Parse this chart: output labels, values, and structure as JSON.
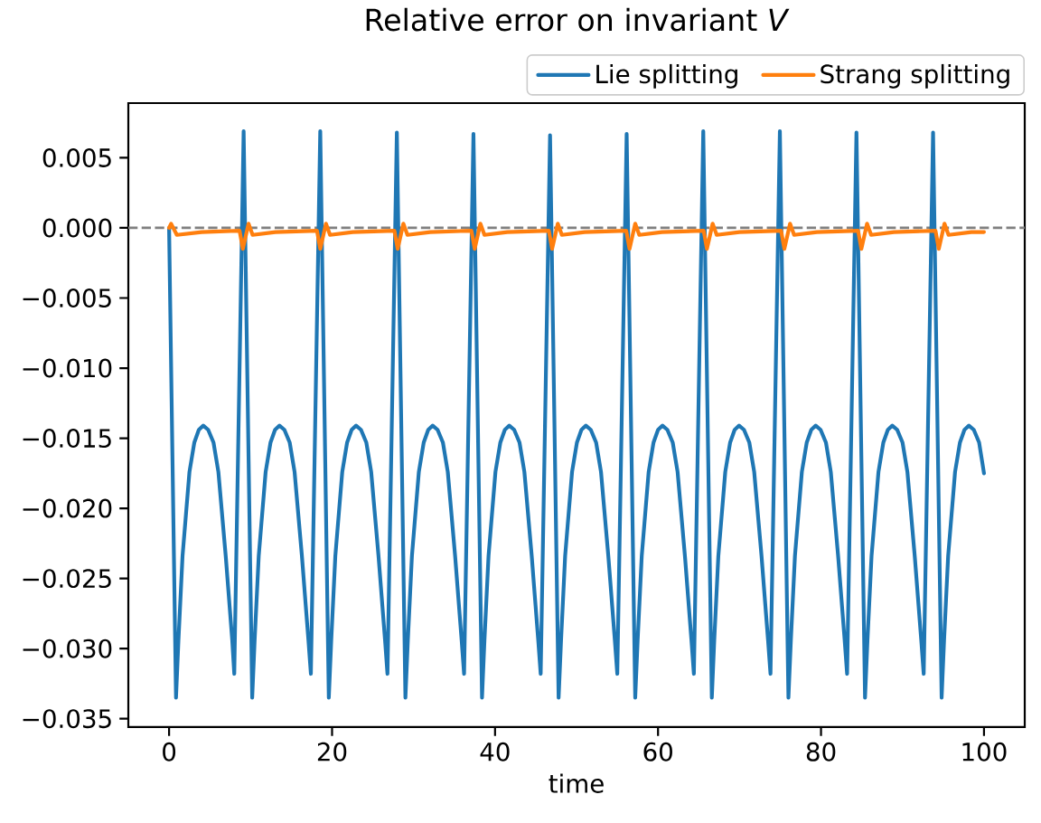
{
  "chart_data": {
    "type": "line",
    "title": "Relative error on invariant *V*",
    "xlabel": "time",
    "xlim": [
      -5,
      105
    ],
    "xticks": [
      0,
      20,
      40,
      60,
      80,
      100
    ],
    "ylim": [
      -0.0356,
      0.0089
    ],
    "yticks": [
      {
        "value": -0.035,
        "label": "−0.035"
      },
      {
        "value": -0.03,
        "label": "−0.030"
      },
      {
        "value": -0.025,
        "label": "−0.025"
      },
      {
        "value": -0.02,
        "label": "−0.020"
      },
      {
        "value": -0.015,
        "label": "−0.015"
      },
      {
        "value": -0.01,
        "label": "−0.010"
      },
      {
        "value": -0.005,
        "label": "−0.005"
      },
      {
        "value": 0,
        "label": "0.000"
      },
      {
        "value": 0.005,
        "label": "0.005"
      }
    ],
    "series": [
      {
        "name": "Lie splitting",
        "color": "#1f77b4",
        "x": [
          0,
          0.85,
          1.15,
          1.65,
          2.5,
          3.1,
          3.65,
          4.2,
          4.8,
          5.45,
          6.05,
          6.95,
          7.75,
          8.0,
          9.15,
          10.2,
          10.5,
          11.0,
          11.85,
          12.45,
          13.0,
          13.55,
          14.15,
          14.8,
          15.4,
          16.3,
          17.1,
          17.4,
          18.55,
          19.6,
          19.9,
          20.4,
          21.25,
          21.85,
          22.4,
          22.95,
          23.55,
          24.2,
          24.8,
          25.7,
          26.5,
          26.8,
          27.95,
          29.0,
          29.3,
          29.8,
          30.65,
          31.25,
          31.8,
          32.35,
          32.95,
          33.6,
          34.2,
          35.1,
          35.9,
          36.2,
          37.35,
          38.4,
          38.7,
          39.2,
          40.05,
          40.65,
          41.2,
          41.75,
          42.35,
          43.0,
          43.6,
          44.5,
          45.3,
          45.6,
          46.75,
          47.8,
          48.1,
          48.6,
          49.45,
          50.05,
          50.6,
          51.15,
          51.75,
          52.4,
          53.0,
          53.9,
          54.7,
          55.0,
          56.15,
          57.2,
          57.5,
          58.0,
          58.85,
          59.45,
          60.0,
          60.55,
          61.15,
          61.8,
          62.4,
          63.3,
          64.1,
          64.4,
          65.55,
          66.6,
          66.9,
          67.4,
          68.25,
          68.85,
          69.4,
          69.95,
          70.55,
          71.2,
          71.8,
          72.7,
          73.5,
          73.8,
          74.95,
          76.0,
          76.3,
          76.8,
          77.65,
          78.25,
          78.8,
          79.35,
          79.95,
          80.6,
          81.2,
          82.1,
          82.9,
          83.2,
          84.35,
          85.4,
          85.7,
          86.2,
          87.05,
          87.65,
          88.2,
          88.75,
          89.35,
          90.0,
          90.6,
          91.5,
          92.3,
          92.6,
          93.75,
          94.8,
          95.1,
          95.6,
          96.45,
          97.05,
          97.6,
          98.15,
          98.75,
          99.4,
          100
        ],
        "values": [
          0.0,
          -0.0335,
          -0.0294,
          -0.0234,
          -0.0174,
          -0.0153,
          -0.0144,
          -0.0141,
          -0.0144,
          -0.0153,
          -0.0174,
          -0.0234,
          -0.0294,
          -0.0318,
          0.0069,
          -0.0335,
          -0.0294,
          -0.0234,
          -0.0174,
          -0.0153,
          -0.0144,
          -0.0141,
          -0.0144,
          -0.0153,
          -0.0174,
          -0.0234,
          -0.0294,
          -0.0318,
          0.0069,
          -0.0335,
          -0.0294,
          -0.0234,
          -0.0174,
          -0.0153,
          -0.0144,
          -0.0141,
          -0.0144,
          -0.0153,
          -0.0174,
          -0.0234,
          -0.0294,
          -0.0318,
          0.0068,
          -0.0335,
          -0.0294,
          -0.0234,
          -0.0174,
          -0.0153,
          -0.0144,
          -0.0141,
          -0.0144,
          -0.0153,
          -0.0174,
          -0.0234,
          -0.0294,
          -0.0318,
          0.0067,
          -0.0335,
          -0.0294,
          -0.0234,
          -0.0174,
          -0.0153,
          -0.0144,
          -0.0141,
          -0.0144,
          -0.0153,
          -0.0174,
          -0.0234,
          -0.0294,
          -0.0318,
          0.0066,
          -0.0335,
          -0.0294,
          -0.0234,
          -0.0174,
          -0.0153,
          -0.0144,
          -0.0141,
          -0.0144,
          -0.0153,
          -0.0174,
          -0.0234,
          -0.0294,
          -0.0318,
          0.0067,
          -0.0335,
          -0.0294,
          -0.0234,
          -0.0174,
          -0.0153,
          -0.0144,
          -0.0141,
          -0.0144,
          -0.0153,
          -0.0174,
          -0.0234,
          -0.0294,
          -0.0318,
          0.0069,
          -0.0335,
          -0.0294,
          -0.0234,
          -0.0174,
          -0.0153,
          -0.0144,
          -0.0141,
          -0.0144,
          -0.0153,
          -0.0174,
          -0.0234,
          -0.0294,
          -0.0318,
          0.0069,
          -0.0335,
          -0.0294,
          -0.0234,
          -0.0174,
          -0.0153,
          -0.0144,
          -0.0141,
          -0.0144,
          -0.0153,
          -0.0174,
          -0.0234,
          -0.0294,
          -0.0318,
          0.0068,
          -0.0335,
          -0.0294,
          -0.0234,
          -0.0174,
          -0.0153,
          -0.0144,
          -0.0141,
          -0.0144,
          -0.0153,
          -0.0174,
          -0.0234,
          -0.0294,
          -0.0318,
          0.0068,
          -0.0335,
          -0.0294,
          -0.0234,
          -0.0174,
          -0.0153,
          -0.0144,
          -0.0141,
          -0.0144,
          -0.0153,
          -0.0175
        ]
      },
      {
        "name": "Strang splitting",
        "color": "#ff7f0e",
        "x": [
          0,
          0.25,
          0.95,
          4.0,
          8.65,
          9.05,
          9.75,
          10.25,
          13.05,
          18.15,
          18.55,
          19.25,
          19.75,
          22.55,
          27.65,
          28.05,
          28.75,
          29.25,
          32.05,
          37.1,
          37.5,
          38.2,
          38.7,
          41.5,
          46.6,
          47.0,
          47.7,
          48.2,
          51.0,
          56.1,
          56.5,
          57.2,
          57.7,
          60.5,
          65.6,
          66.0,
          66.7,
          67.2,
          70.0,
          75.1,
          75.5,
          76.2,
          76.7,
          79.5,
          84.55,
          84.95,
          85.65,
          86.15,
          88.95,
          94.05,
          94.45,
          95.15,
          95.65,
          98.45,
          100
        ],
        "values": [
          0.0,
          0.0003,
          -0.0005,
          -0.0003,
          -0.0002,
          -0.0015,
          0.0003,
          -0.0005,
          -0.0003,
          -0.0002,
          -0.0015,
          0.0003,
          -0.0005,
          -0.0003,
          -0.0002,
          -0.0015,
          0.0003,
          -0.0005,
          -0.0003,
          -0.0002,
          -0.0015,
          0.0003,
          -0.0005,
          -0.0003,
          -0.0002,
          -0.0015,
          0.0003,
          -0.0005,
          -0.0003,
          -0.0002,
          -0.0015,
          0.0003,
          -0.0005,
          -0.0003,
          -0.0002,
          -0.0015,
          0.0003,
          -0.0005,
          -0.0003,
          -0.0002,
          -0.0015,
          0.0003,
          -0.0005,
          -0.0003,
          -0.0002,
          -0.0015,
          0.0003,
          -0.0005,
          -0.0003,
          -0.0002,
          -0.0015,
          0.0003,
          -0.0005,
          -0.0003,
          -0.0003
        ]
      }
    ],
    "ref_lines": [
      {
        "axis": "y",
        "value": 0,
        "color": "#808080",
        "line_style": "dashed"
      }
    ],
    "legend": "top right"
  }
}
